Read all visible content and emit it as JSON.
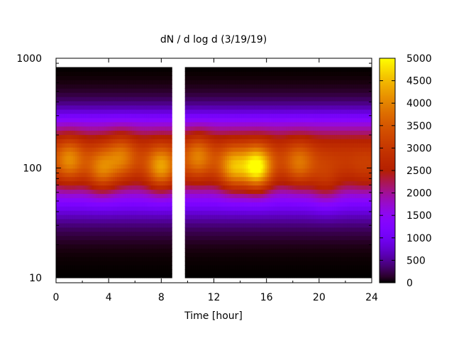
{
  "chart_data": {
    "type": "heatmap",
    "title": "dN / d log d (3/19/19)",
    "xlabel": "Time [hour]",
    "ylabel": "",
    "x_range": [
      0,
      24
    ],
    "y_range": [
      9,
      1000
    ],
    "y_scale": "log",
    "x_ticks": [
      "0",
      "4",
      "8",
      "12",
      "16",
      "20",
      "24"
    ],
    "y_ticks": [
      "10",
      "100",
      "1000"
    ],
    "colorbar": {
      "range": [
        0,
        5000
      ],
      "ticks": [
        "0",
        "500",
        "1000",
        "1500",
        "2000",
        "2500",
        "3000",
        "3500",
        "4000",
        "4500",
        "5000"
      ],
      "palette": "gnuplot (black-purple-red-orange-yellow)"
    },
    "data_segments": [
      {
        "t_start": 0.0,
        "t_end": 8.8
      },
      {
        "t_start": 9.8,
        "t_end": 24.0
      }
    ],
    "size_range": [
      10,
      830
    ],
    "peak_band_diameter": [
      60,
      180
    ],
    "bursts": [
      {
        "t": 1.0,
        "d": 120,
        "value": 3300
      },
      {
        "t": 3.5,
        "d": 95,
        "value": 3300
      },
      {
        "t": 5.0,
        "d": 130,
        "value": 3100
      },
      {
        "t": 8.0,
        "d": 100,
        "value": 3600
      },
      {
        "t": 10.8,
        "d": 130,
        "value": 3200
      },
      {
        "t": 13.5,
        "d": 100,
        "value": 3700
      },
      {
        "t": 15.3,
        "d": 100,
        "value": 4400
      },
      {
        "t": 18.5,
        "d": 110,
        "value": 3100
      },
      {
        "t": 20.5,
        "d": 70,
        "value": 2700
      },
      {
        "t": 23.5,
        "d": 90,
        "value": 2400
      }
    ]
  }
}
